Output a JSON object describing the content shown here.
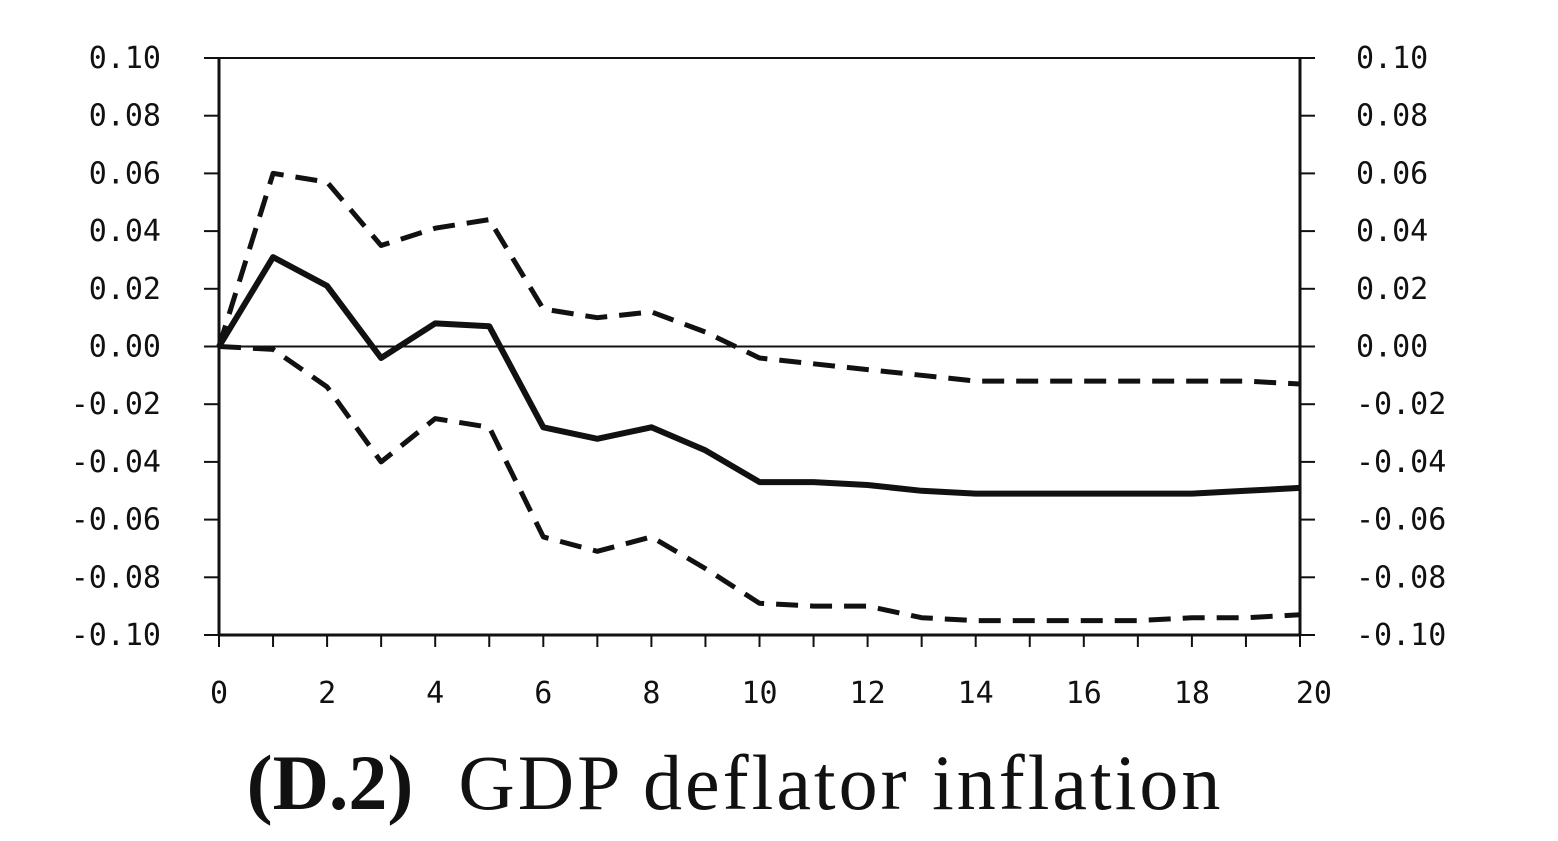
{
  "chart_data": {
    "type": "line",
    "panel_label": "(D.2)",
    "title": "GDP deflator inflation",
    "xlabel": "",
    "ylabel": "",
    "xlim": [
      0,
      20
    ],
    "ylim": [
      -0.1,
      0.1
    ],
    "x_ticks": [
      "0",
      "2",
      "4",
      "6",
      "8",
      "10",
      "12",
      "14",
      "16",
      "18",
      "20"
    ],
    "y_ticks": [
      "0.10",
      "0.08",
      "0.06",
      "0.04",
      "0.02",
      "0.00",
      "-0.02",
      "-0.04",
      "-0.06",
      "-0.08",
      "-0.10"
    ],
    "y_tick_values": [
      0.1,
      0.08,
      0.06,
      0.04,
      0.02,
      0.0,
      -0.02,
      -0.04,
      -0.06,
      -0.08,
      -0.1
    ],
    "right_axis_mirrors_left": true,
    "zero_line": true,
    "grid": false,
    "x": [
      0,
      1,
      2,
      3,
      4,
      5,
      6,
      7,
      8,
      9,
      10,
      11,
      12,
      13,
      14,
      15,
      16,
      17,
      18,
      19,
      20
    ],
    "series": [
      {
        "role": "upper-band",
        "style": "dashed",
        "values": [
          0.0,
          0.06,
          0.057,
          0.035,
          0.041,
          0.044,
          0.013,
          0.01,
          0.012,
          0.005,
          -0.004,
          -0.006,
          -0.008,
          -0.01,
          -0.012,
          -0.012,
          -0.012,
          -0.012,
          -0.012,
          -0.012,
          -0.013
        ]
      },
      {
        "role": "point-estimate",
        "style": "solid",
        "values": [
          0.0,
          0.031,
          0.021,
          -0.004,
          0.008,
          0.007,
          -0.028,
          -0.032,
          -0.028,
          -0.036,
          -0.047,
          -0.047,
          -0.048,
          -0.05,
          -0.051,
          -0.051,
          -0.051,
          -0.051,
          -0.051,
          -0.05,
          -0.049
        ]
      },
      {
        "role": "lower-band",
        "style": "dashed",
        "values": [
          0.0,
          -0.001,
          -0.014,
          -0.04,
          -0.025,
          -0.028,
          -0.066,
          -0.071,
          -0.066,
          -0.077,
          -0.089,
          -0.09,
          -0.09,
          -0.094,
          -0.095,
          -0.095,
          -0.095,
          -0.095,
          -0.094,
          -0.094,
          -0.093
        ]
      }
    ]
  }
}
